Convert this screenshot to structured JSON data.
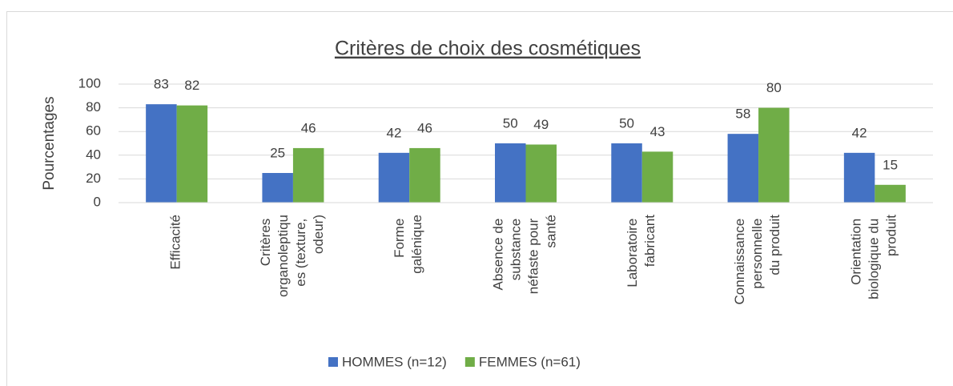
{
  "chart_data": {
    "type": "bar",
    "title": "Critères de choix des cosmétiques",
    "y_label": "Pourcentages",
    "categories": [
      "Efficacité",
      "Critères organoleptiques (texture, odeur)",
      "Forme galénique",
      "Absence de substance néfaste pour santé",
      "Laboratoire fabricant",
      "Connaissance personnelle du produit",
      "Orientation biologique du produit"
    ],
    "series": [
      {
        "name": "HOMMES (n=12)",
        "color": "#4472c4",
        "values": [
          83,
          25,
          42,
          50,
          50,
          58,
          42
        ]
      },
      {
        "name": "FEMMES (n=61)",
        "color": "#70ad47",
        "values": [
          82,
          46,
          46,
          49,
          43,
          80,
          15
        ]
      }
    ],
    "ylim": [
      0,
      100
    ],
    "yticks": [
      0,
      20,
      40,
      60,
      80,
      100
    ],
    "grid": true,
    "legend": "bottom"
  }
}
